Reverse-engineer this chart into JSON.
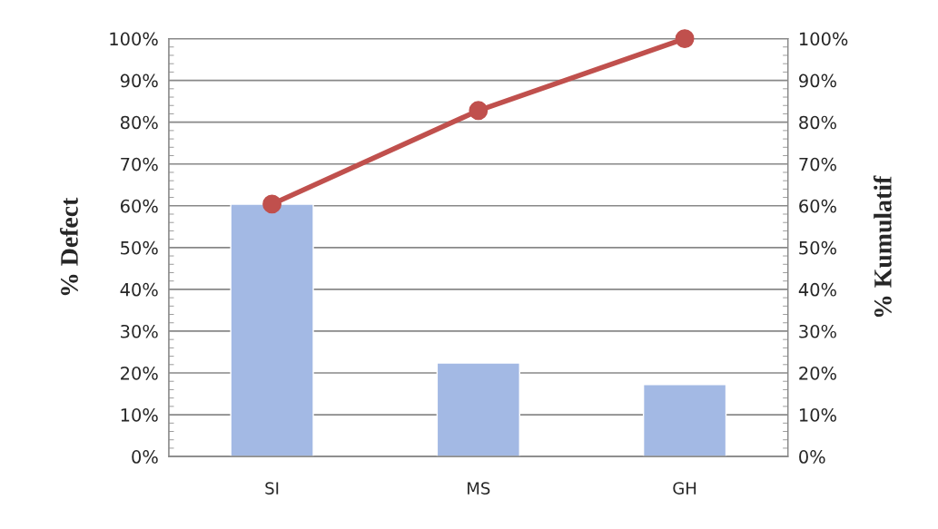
{
  "chart_data": {
    "type": "bar",
    "ylabel": "% Defect",
    "y2label": "% Kumulatif",
    "categories": [
      "SI",
      "MS",
      "GH"
    ],
    "series": [
      {
        "color": "#a3b9e4",
        "values": [
          60.4,
          22.4,
          17.2
        ]
      },
      {
        "type": "line",
        "axis": "y2",
        "color": "#c0504d",
        "marker": "circle",
        "line_style": "solid",
        "values": [
          60.4,
          82.8,
          100
        ]
      }
    ],
    "ylim": [
      0,
      100
    ],
    "yticks": [
      {
        "value": 0,
        "label": "0%"
      },
      {
        "value": 10,
        "label": "10%"
      },
      {
        "value": 20,
        "label": "20%"
      },
      {
        "value": 30,
        "label": "30%"
      },
      {
        "value": 40,
        "label": "40%"
      },
      {
        "value": 50,
        "label": "50%"
      },
      {
        "value": 60,
        "label": "60%"
      },
      {
        "value": 70,
        "label": "70%"
      },
      {
        "value": 80,
        "label": "80%"
      },
      {
        "value": 90,
        "label": "90%"
      },
      {
        "value": 100,
        "label": "100%"
      }
    ],
    "y2lim": [
      0,
      100
    ],
    "y2ticks": [
      {
        "value": 0,
        "label": "0%"
      },
      {
        "value": 10,
        "label": "10%"
      },
      {
        "value": 20,
        "label": "20%"
      },
      {
        "value": 30,
        "label": "30%"
      },
      {
        "value": 40,
        "label": "40%"
      },
      {
        "value": 50,
        "label": "50%"
      },
      {
        "value": 60,
        "label": "60%"
      },
      {
        "value": 70,
        "label": "70%"
      },
      {
        "value": 80,
        "label": "80%"
      },
      {
        "value": 90,
        "label": "90%"
      },
      {
        "value": 100,
        "label": "100%"
      }
    ],
    "grid": "y",
    "legend": false
  }
}
